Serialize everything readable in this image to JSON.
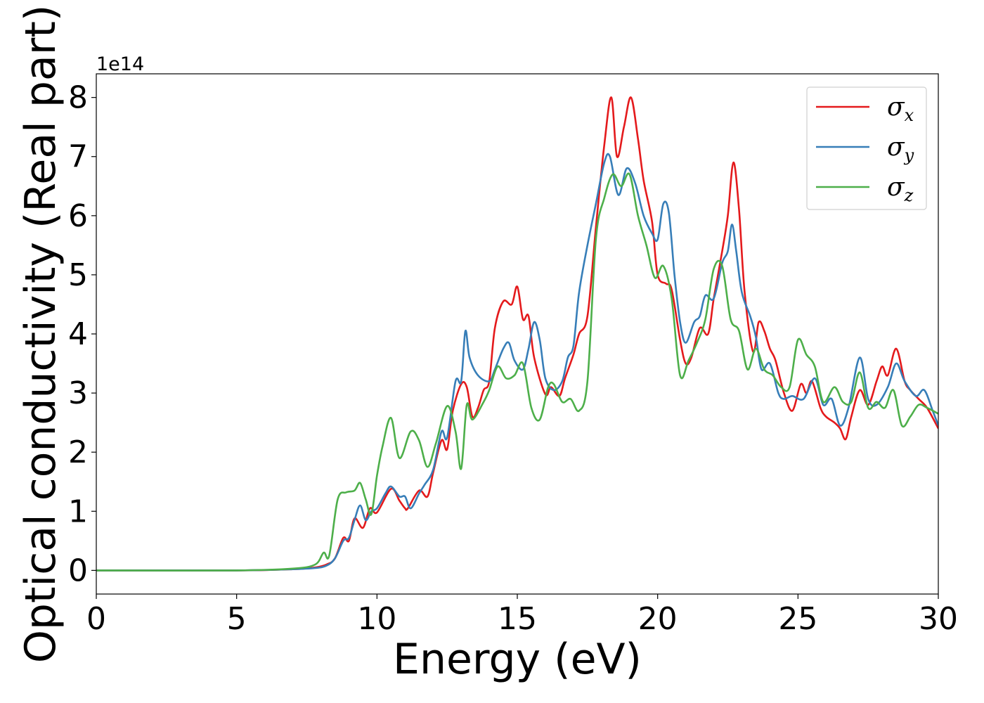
{
  "chart_data": {
    "type": "line",
    "xlabel": "Energy (eV)",
    "ylabel": "Optical conductivity (Real part)",
    "y_offset_label": "1e14",
    "xlim": [
      0,
      30
    ],
    "ylim": [
      -0.4,
      8.4
    ],
    "xticks": [
      0,
      5,
      10,
      15,
      20,
      25,
      30
    ],
    "yticks": [
      0,
      1,
      2,
      3,
      4,
      5,
      6,
      7,
      8
    ],
    "legend_position": "top-right",
    "grid": false,
    "series": [
      {
        "name": "σ",
        "subscript": "x",
        "color": "#e41a1c",
        "points": [
          [
            0,
            0
          ],
          [
            5,
            0
          ],
          [
            7,
            0.02
          ],
          [
            7.8,
            0.05
          ],
          [
            8.2,
            0.1
          ],
          [
            8.5,
            0.2
          ],
          [
            8.8,
            0.55
          ],
          [
            9,
            0.5
          ],
          [
            9.2,
            0.88
          ],
          [
            9.5,
            0.72
          ],
          [
            9.75,
            1.05
          ],
          [
            10,
            0.98
          ],
          [
            10.5,
            1.38
          ],
          [
            10.8,
            1.18
          ],
          [
            11,
            1.05
          ],
          [
            11.1,
            1.05
          ],
          [
            11.5,
            1.35
          ],
          [
            11.8,
            1.25
          ],
          [
            12,
            1.65
          ],
          [
            12.3,
            2.2
          ],
          [
            12.5,
            2.05
          ],
          [
            12.7,
            2.7
          ],
          [
            13,
            3.15
          ],
          [
            13.2,
            3.1
          ],
          [
            13.4,
            2.6
          ],
          [
            13.6,
            2.75
          ],
          [
            13.8,
            3.05
          ],
          [
            14,
            3.2
          ],
          [
            14.2,
            4.1
          ],
          [
            14.5,
            4.55
          ],
          [
            14.8,
            4.5
          ],
          [
            15,
            4.8
          ],
          [
            15.2,
            4.25
          ],
          [
            15.4,
            4.3
          ],
          [
            15.6,
            3.6
          ],
          [
            16,
            2.98
          ],
          [
            16.2,
            3.1
          ],
          [
            16.5,
            2.95
          ],
          [
            16.7,
            3.25
          ],
          [
            17,
            3.65
          ],
          [
            17.2,
            4.0
          ],
          [
            17.5,
            4.3
          ],
          [
            17.8,
            5.8
          ],
          [
            18.1,
            7.2
          ],
          [
            18.35,
            8.0
          ],
          [
            18.55,
            7.0
          ],
          [
            18.8,
            7.5
          ],
          [
            19.05,
            8.0
          ],
          [
            19.3,
            7.3
          ],
          [
            19.5,
            6.6
          ],
          [
            19.8,
            5.9
          ],
          [
            20,
            5.0
          ],
          [
            20.3,
            4.85
          ],
          [
            20.5,
            4.75
          ],
          [
            20.8,
            3.9
          ],
          [
            21,
            3.5
          ],
          [
            21.2,
            3.6
          ],
          [
            21.5,
            4.1
          ],
          [
            21.8,
            4.0
          ],
          [
            22,
            4.6
          ],
          [
            22.3,
            5.4
          ],
          [
            22.5,
            6.0
          ],
          [
            22.7,
            6.9
          ],
          [
            22.9,
            6.1
          ],
          [
            23.1,
            4.7
          ],
          [
            23.4,
            3.7
          ],
          [
            23.6,
            4.2
          ],
          [
            23.8,
            4.05
          ],
          [
            24,
            3.75
          ],
          [
            24.2,
            3.55
          ],
          [
            24.5,
            3.0
          ],
          [
            24.8,
            2.7
          ],
          [
            25.1,
            3.15
          ],
          [
            25.3,
            3.0
          ],
          [
            25.5,
            3.2
          ],
          [
            25.8,
            2.75
          ],
          [
            26,
            2.6
          ],
          [
            26.3,
            2.5
          ],
          [
            26.5,
            2.4
          ],
          [
            26.7,
            2.22
          ],
          [
            26.9,
            2.6
          ],
          [
            27.2,
            3.05
          ],
          [
            27.5,
            2.8
          ],
          [
            27.8,
            3.2
          ],
          [
            28,
            3.45
          ],
          [
            28.2,
            3.3
          ],
          [
            28.5,
            3.75
          ],
          [
            28.8,
            3.2
          ],
          [
            29,
            3.05
          ],
          [
            29.3,
            2.9
          ],
          [
            29.6,
            2.75
          ],
          [
            30,
            2.4
          ]
        ]
      },
      {
        "name": "σ",
        "subscript": "y",
        "color": "#377eb8",
        "points": [
          [
            0,
            0
          ],
          [
            5,
            0
          ],
          [
            7,
            0.02
          ],
          [
            7.8,
            0.04
          ],
          [
            8.2,
            0.08
          ],
          [
            8.5,
            0.2
          ],
          [
            8.8,
            0.5
          ],
          [
            9,
            0.55
          ],
          [
            9.2,
            0.85
          ],
          [
            9.4,
            1.1
          ],
          [
            9.6,
            0.85
          ],
          [
            9.8,
            1.0
          ],
          [
            10,
            1.05
          ],
          [
            10.3,
            1.3
          ],
          [
            10.5,
            1.42
          ],
          [
            10.8,
            1.25
          ],
          [
            11,
            1.25
          ],
          [
            11.2,
            1.05
          ],
          [
            11.5,
            1.3
          ],
          [
            11.7,
            1.45
          ],
          [
            12,
            1.7
          ],
          [
            12.3,
            2.35
          ],
          [
            12.5,
            2.25
          ],
          [
            12.8,
            3.2
          ],
          [
            13,
            3.2
          ],
          [
            13.15,
            4.05
          ],
          [
            13.3,
            3.6
          ],
          [
            13.6,
            3.3
          ],
          [
            14,
            3.2
          ],
          [
            14.2,
            3.4
          ],
          [
            14.5,
            3.75
          ],
          [
            14.7,
            3.85
          ],
          [
            14.9,
            3.55
          ],
          [
            15.2,
            3.4
          ],
          [
            15.4,
            3.75
          ],
          [
            15.6,
            4.2
          ],
          [
            15.8,
            3.9
          ],
          [
            16,
            3.25
          ],
          [
            16.3,
            3.05
          ],
          [
            16.6,
            3.2
          ],
          [
            16.8,
            3.6
          ],
          [
            17,
            3.8
          ],
          [
            17.2,
            4.7
          ],
          [
            17.5,
            5.5
          ],
          [
            17.8,
            6.2
          ],
          [
            18.1,
            6.9
          ],
          [
            18.3,
            7.0
          ],
          [
            18.6,
            6.35
          ],
          [
            18.9,
            6.8
          ],
          [
            19.2,
            6.55
          ],
          [
            19.5,
            6.0
          ],
          [
            19.8,
            5.7
          ],
          [
            20,
            5.6
          ],
          [
            20.2,
            6.2
          ],
          [
            20.4,
            6.05
          ],
          [
            20.6,
            5.0
          ],
          [
            20.8,
            4.2
          ],
          [
            21,
            3.85
          ],
          [
            21.3,
            4.2
          ],
          [
            21.5,
            4.3
          ],
          [
            21.7,
            4.65
          ],
          [
            22,
            4.6
          ],
          [
            22.3,
            5.2
          ],
          [
            22.5,
            5.4
          ],
          [
            22.65,
            5.85
          ],
          [
            22.8,
            5.4
          ],
          [
            23,
            4.7
          ],
          [
            23.3,
            4.3
          ],
          [
            23.5,
            3.95
          ],
          [
            23.7,
            3.4
          ],
          [
            24,
            3.5
          ],
          [
            24.3,
            3.0
          ],
          [
            24.5,
            2.9
          ],
          [
            24.8,
            2.95
          ],
          [
            25.2,
            2.9
          ],
          [
            25.6,
            3.25
          ],
          [
            25.9,
            2.8
          ],
          [
            26.2,
            2.9
          ],
          [
            26.5,
            2.45
          ],
          [
            26.8,
            2.75
          ],
          [
            27.2,
            3.6
          ],
          [
            27.5,
            2.9
          ],
          [
            27.8,
            2.8
          ],
          [
            28.2,
            3.1
          ],
          [
            28.5,
            3.5
          ],
          [
            28.8,
            3.2
          ],
          [
            29.2,
            2.95
          ],
          [
            29.5,
            3.05
          ],
          [
            29.8,
            2.7
          ],
          [
            30,
            2.45
          ]
        ]
      },
      {
        "name": "σ",
        "subscript": "z",
        "color": "#4daf4a",
        "points": [
          [
            0,
            0
          ],
          [
            5,
            0
          ],
          [
            7,
            0.03
          ],
          [
            7.8,
            0.1
          ],
          [
            8.1,
            0.3
          ],
          [
            8.3,
            0.25
          ],
          [
            8.6,
            1.2
          ],
          [
            8.9,
            1.32
          ],
          [
            9.2,
            1.35
          ],
          [
            9.4,
            1.48
          ],
          [
            9.6,
            1.2
          ],
          [
            9.8,
            0.95
          ],
          [
            10,
            1.6
          ],
          [
            10.2,
            2.1
          ],
          [
            10.5,
            2.58
          ],
          [
            10.8,
            1.9
          ],
          [
            11.2,
            2.35
          ],
          [
            11.5,
            2.2
          ],
          [
            11.8,
            1.75
          ],
          [
            12.1,
            2.15
          ],
          [
            12.5,
            2.78
          ],
          [
            12.8,
            2.35
          ],
          [
            13,
            1.72
          ],
          [
            13.2,
            2.8
          ],
          [
            13.4,
            2.55
          ],
          [
            13.8,
            2.85
          ],
          [
            14,
            3.05
          ],
          [
            14.3,
            3.45
          ],
          [
            14.6,
            3.25
          ],
          [
            14.9,
            3.3
          ],
          [
            15.2,
            3.5
          ],
          [
            15.5,
            2.75
          ],
          [
            15.8,
            2.55
          ],
          [
            16.1,
            3.1
          ],
          [
            16.3,
            3.15
          ],
          [
            16.6,
            2.85
          ],
          [
            16.9,
            2.9
          ],
          [
            17.2,
            2.7
          ],
          [
            17.5,
            3.2
          ],
          [
            17.8,
            5.6
          ],
          [
            18.1,
            6.3
          ],
          [
            18.4,
            6.7
          ],
          [
            18.7,
            6.5
          ],
          [
            19,
            6.7
          ],
          [
            19.3,
            6.0
          ],
          [
            19.6,
            5.5
          ],
          [
            19.9,
            4.95
          ],
          [
            20.2,
            5.15
          ],
          [
            20.5,
            4.6
          ],
          [
            20.8,
            3.3
          ],
          [
            21.1,
            3.55
          ],
          [
            21.4,
            3.85
          ],
          [
            21.7,
            4.25
          ],
          [
            22,
            5.1
          ],
          [
            22.3,
            5.15
          ],
          [
            22.6,
            4.25
          ],
          [
            22.9,
            4.05
          ],
          [
            23.2,
            3.4
          ],
          [
            23.5,
            3.75
          ],
          [
            23.8,
            3.4
          ],
          [
            24.1,
            3.3
          ],
          [
            24.4,
            3.1
          ],
          [
            24.7,
            3.1
          ],
          [
            25,
            3.9
          ],
          [
            25.3,
            3.65
          ],
          [
            25.6,
            3.45
          ],
          [
            25.9,
            2.85
          ],
          [
            26.3,
            3.1
          ],
          [
            26.6,
            2.85
          ],
          [
            26.9,
            2.85
          ],
          [
            27.2,
            3.35
          ],
          [
            27.5,
            2.75
          ],
          [
            27.8,
            2.85
          ],
          [
            28.1,
            2.75
          ],
          [
            28.4,
            3.05
          ],
          [
            28.7,
            2.45
          ],
          [
            29,
            2.6
          ],
          [
            29.3,
            2.8
          ],
          [
            29.6,
            2.75
          ],
          [
            30,
            2.65
          ]
        ]
      }
    ]
  }
}
